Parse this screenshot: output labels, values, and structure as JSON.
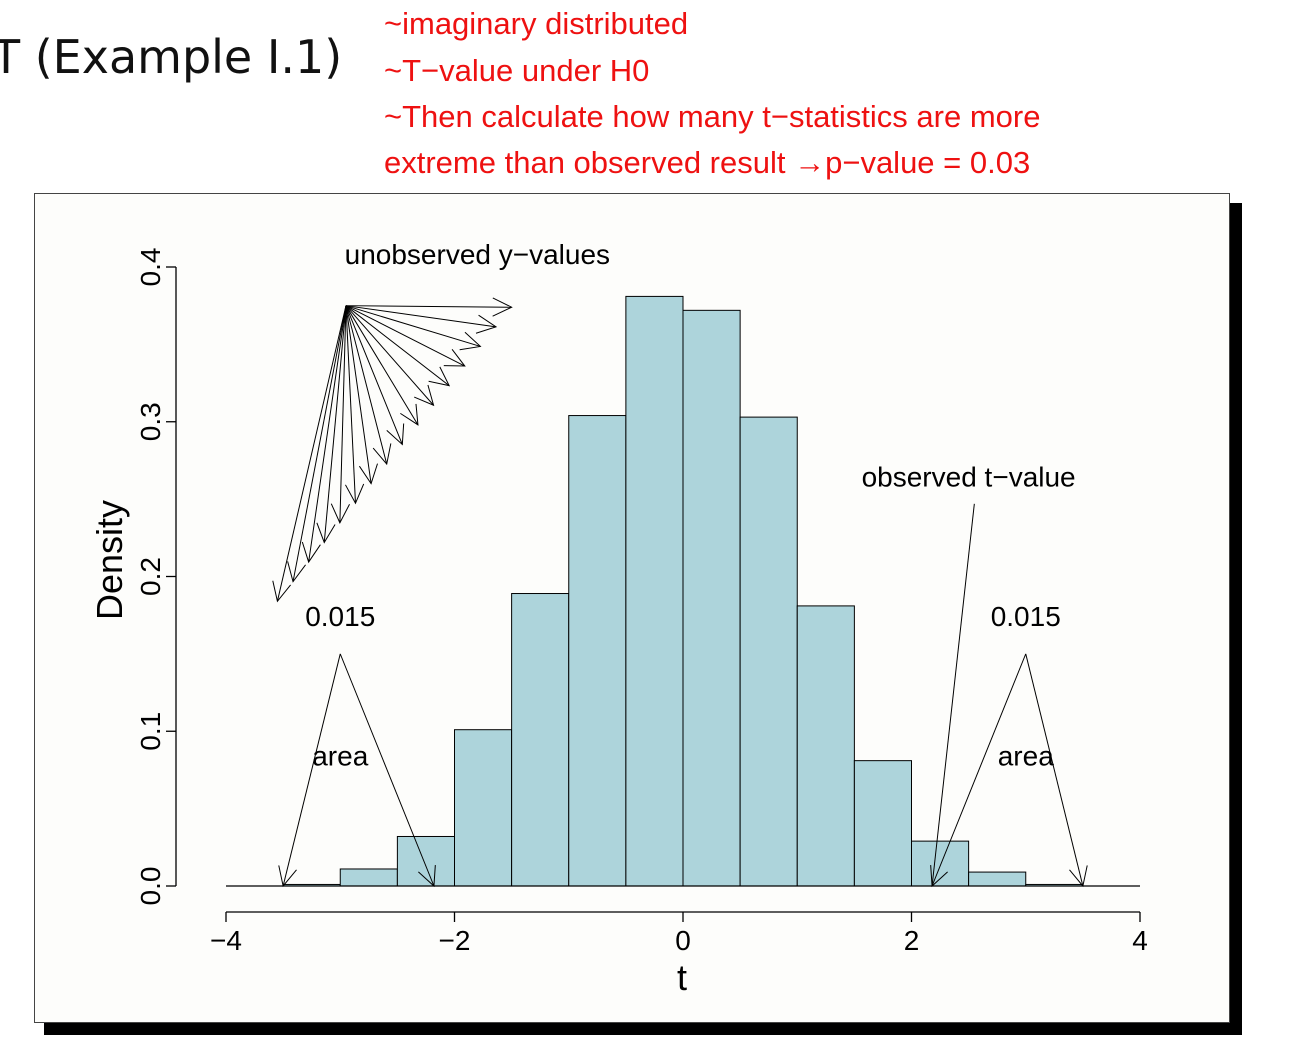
{
  "slide": {
    "title": "T (Example I.1)"
  },
  "notes": [
    "~imaginary distributed",
    "~T−value under H0",
    "~Then calculate how many t−statistics are more",
    "extreme than observed result →p−value = 0.03"
  ],
  "colors": {
    "note_text": "#ee1111",
    "bar_fill": "#add4db",
    "bar_stroke": "#000000"
  },
  "chart_data": {
    "type": "bar",
    "subtype": "histogram",
    "xlabel": "t",
    "ylabel": "Density",
    "xlim": [
      -4,
      4
    ],
    "ylim": [
      0,
      0.4
    ],
    "x_ticks": [
      -4,
      -2,
      0,
      2,
      4
    ],
    "x_tick_labels": [
      "−4",
      "−2",
      "0",
      "2",
      "4"
    ],
    "y_ticks": [
      0.0,
      0.1,
      0.2,
      0.3,
      0.4
    ],
    "y_tick_labels": [
      "0.0",
      "0.1",
      "0.2",
      "0.3",
      "0.4"
    ],
    "bin_width": 0.5,
    "bins": [
      {
        "start": -4.0,
        "end": -3.5,
        "density": 0.0
      },
      {
        "start": -3.5,
        "end": -3.0,
        "density": 0.001
      },
      {
        "start": -3.0,
        "end": -2.5,
        "density": 0.011
      },
      {
        "start": -2.5,
        "end": -2.0,
        "density": 0.032
      },
      {
        "start": -2.0,
        "end": -1.5,
        "density": 0.101
      },
      {
        "start": -1.5,
        "end": -1.0,
        "density": 0.189
      },
      {
        "start": -1.0,
        "end": -0.5,
        "density": 0.304
      },
      {
        "start": -0.5,
        "end": 0.0,
        "density": 0.381
      },
      {
        "start": 0.0,
        "end": 0.5,
        "density": 0.372
      },
      {
        "start": 0.5,
        "end": 1.0,
        "density": 0.303
      },
      {
        "start": 1.0,
        "end": 1.5,
        "density": 0.181
      },
      {
        "start": 1.5,
        "end": 2.0,
        "density": 0.081
      },
      {
        "start": 2.0,
        "end": 2.5,
        "density": 0.029
      },
      {
        "start": 2.5,
        "end": 3.0,
        "density": 0.009
      },
      {
        "start": 3.0,
        "end": 3.5,
        "density": 0.001
      },
      {
        "start": 3.5,
        "end": 4.0,
        "density": 0.0
      }
    ],
    "grid": false,
    "annotations": {
      "unobserved": {
        "label": "unobserved y−values",
        "label_at": [
          -1.8,
          0.402
        ],
        "origin": [
          -2.95,
          0.375
        ],
        "arrow_count": 16,
        "tips_from": [
          -3.55,
          0.184
        ],
        "tips_to": [
          -1.5,
          0.374
        ]
      },
      "observed": {
        "label": "observed t−value",
        "label_at": [
          2.5,
          0.258
        ],
        "anchor": [
          2.55,
          0.247
        ],
        "tip": [
          2.18,
          0.0
        ]
      },
      "left_tail": {
        "value_label": "0.015",
        "value_at": [
          -3.0,
          0.168
        ],
        "area_label": "area",
        "area_at": [
          -3.0,
          0.078
        ],
        "apex": [
          -3.0,
          0.15
        ],
        "tips": [
          [
            -3.5,
            0.0
          ],
          [
            -2.18,
            0.0
          ]
        ]
      },
      "right_tail": {
        "value_label": "0.015",
        "value_at": [
          3.0,
          0.168
        ],
        "area_label": "area",
        "area_at": [
          3.0,
          0.078
        ],
        "apex": [
          3.0,
          0.15
        ],
        "tips": [
          [
            2.18,
            0.0
          ],
          [
            3.5,
            0.0
          ]
        ]
      }
    }
  }
}
